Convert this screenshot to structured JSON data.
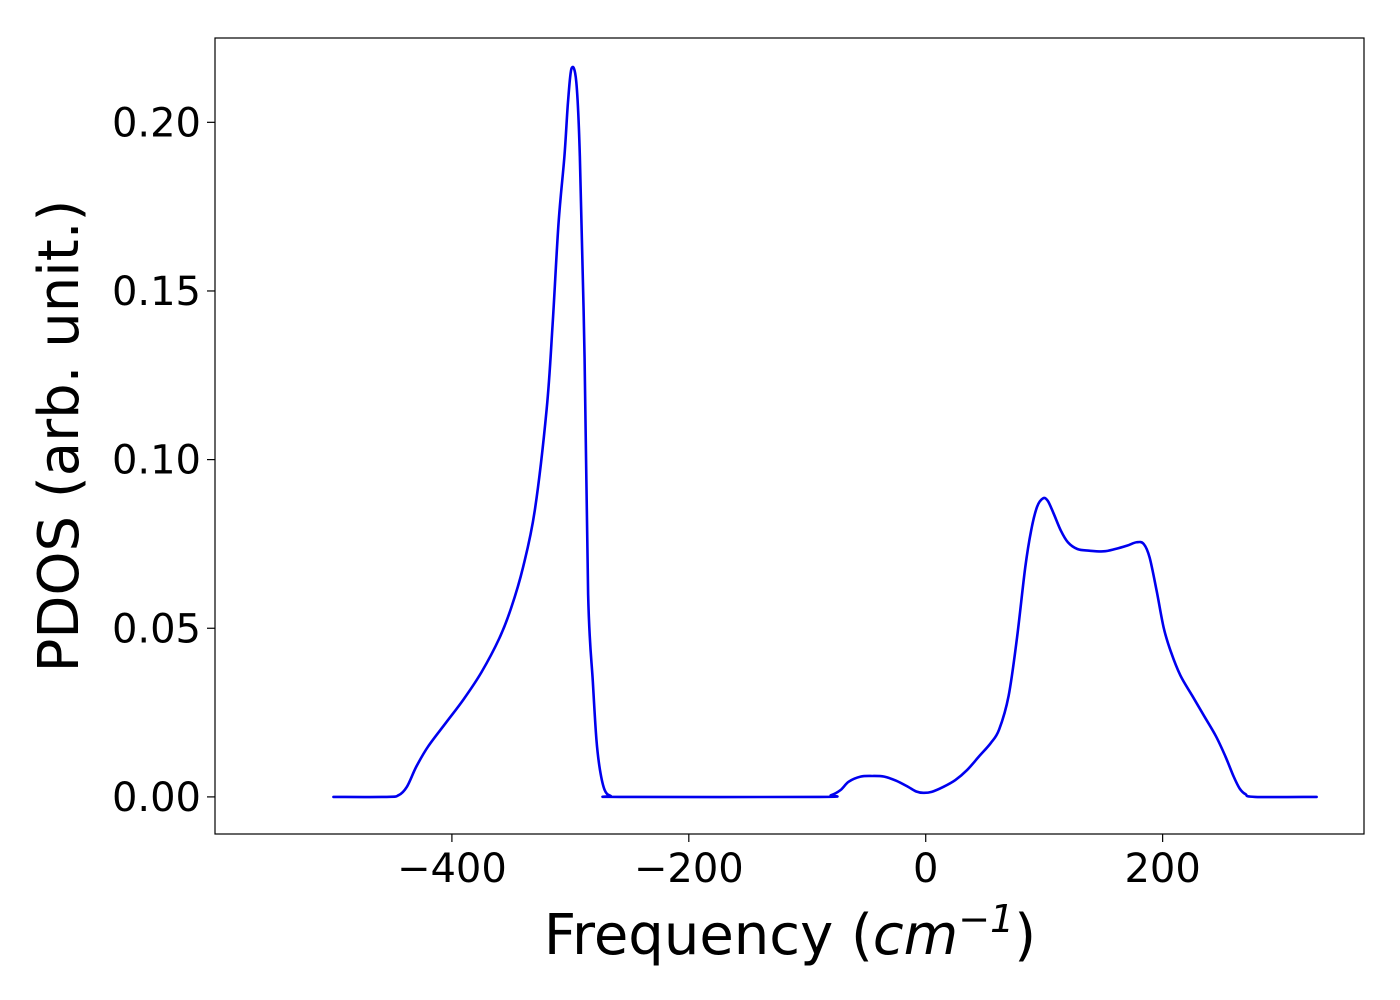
{
  "chart_data": {
    "type": "line",
    "title": "",
    "xlabel": "Frequency (cm⁻¹)",
    "xlabel_parts": {
      "prefix": "Frequency (",
      "unit_base": "cm",
      "unit_exp": "−1",
      "suffix": ")"
    },
    "ylabel": "PDOS (arb. unit.)",
    "xlim": [
      -600,
      370
    ],
    "ylim": [
      -0.011,
      0.225
    ],
    "x_ticks": [
      -400,
      -200,
      0,
      200
    ],
    "x_tick_labels": [
      "−400",
      "−200",
      "0",
      "200"
    ],
    "y_ticks": [
      0.0,
      0.05,
      0.1,
      0.15,
      0.2
    ],
    "y_tick_labels": [
      "0.00",
      "0.05",
      "0.10",
      "0.15",
      "0.20"
    ],
    "grid": false,
    "legend": "none",
    "series": [
      {
        "color": "#0000ee",
        "points": [
          [
            -500,
            0.0
          ],
          [
            -455,
            0.0
          ],
          [
            -445,
            0.0005
          ],
          [
            -438,
            0.003
          ],
          [
            -430,
            0.009
          ],
          [
            -420,
            0.015
          ],
          [
            -405,
            0.022
          ],
          [
            -390,
            0.029
          ],
          [
            -375,
            0.037
          ],
          [
            -360,
            0.047
          ],
          [
            -350,
            0.056
          ],
          [
            -340,
            0.068
          ],
          [
            -330,
            0.085
          ],
          [
            -320,
            0.115
          ],
          [
            -315,
            0.14
          ],
          [
            -310,
            0.17
          ],
          [
            -305,
            0.19
          ],
          [
            -302,
            0.206
          ],
          [
            -299,
            0.216
          ],
          [
            -295,
            0.212
          ],
          [
            -292,
            0.19
          ],
          [
            -288,
            0.13
          ],
          [
            -285,
            0.06
          ],
          [
            -281,
            0.034
          ],
          [
            -278,
            0.017
          ],
          [
            -275,
            0.008
          ],
          [
            -271,
            0.002
          ],
          [
            -266,
            0.0003
          ],
          [
            -258,
            0.0
          ],
          [
            -90,
            0.0
          ],
          [
            -80,
            0.0005
          ],
          [
            -72,
            0.002
          ],
          [
            -65,
            0.0045
          ],
          [
            -55,
            0.006
          ],
          [
            -45,
            0.0062
          ],
          [
            -35,
            0.006
          ],
          [
            -25,
            0.0048
          ],
          [
            -15,
            0.003
          ],
          [
            -8,
            0.0016
          ],
          [
            -2,
            0.0012
          ],
          [
            5,
            0.0015
          ],
          [
            15,
            0.003
          ],
          [
            25,
            0.005
          ],
          [
            35,
            0.008
          ],
          [
            45,
            0.012
          ],
          [
            55,
            0.016
          ],
          [
            62,
            0.02
          ],
          [
            70,
            0.03
          ],
          [
            77,
            0.047
          ],
          [
            84,
            0.068
          ],
          [
            89,
            0.079
          ],
          [
            94,
            0.086
          ],
          [
            99,
            0.0885
          ],
          [
            103,
            0.0878
          ],
          [
            108,
            0.084
          ],
          [
            114,
            0.079
          ],
          [
            120,
            0.0755
          ],
          [
            128,
            0.0735
          ],
          [
            138,
            0.073
          ],
          [
            150,
            0.0728
          ],
          [
            160,
            0.0735
          ],
          [
            170,
            0.0745
          ],
          [
            178,
            0.0755
          ],
          [
            184,
            0.075
          ],
          [
            189,
            0.071
          ],
          [
            195,
            0.061
          ],
          [
            201,
            0.05
          ],
          [
            207,
            0.043
          ],
          [
            215,
            0.036
          ],
          [
            225,
            0.03
          ],
          [
            235,
            0.024
          ],
          [
            245,
            0.018
          ],
          [
            253,
            0.012
          ],
          [
            260,
            0.006
          ],
          [
            265,
            0.0025
          ],
          [
            270,
            0.0008
          ],
          [
            278,
            0.0
          ],
          [
            330,
            0.0
          ]
        ]
      }
    ]
  }
}
